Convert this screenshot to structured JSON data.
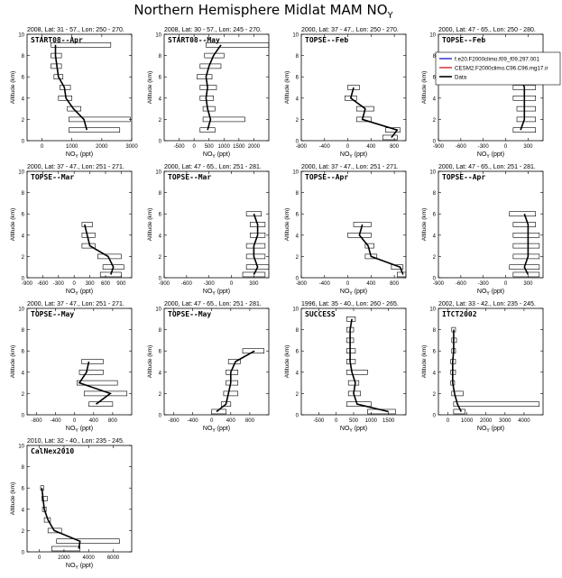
{
  "figure": {
    "title_main": "Northern Hemisphere Midlat MAM NO",
    "title_sub": "Y",
    "y_label": "Altitude (km)",
    "x_label_main": "NO",
    "x_label_sub": "Y",
    "x_label_unit": " (ppt)"
  },
  "legend": {
    "entries": [
      {
        "label": "f.e20.F2000climo.f09_f09.297.001",
        "color": "#0000cc"
      },
      {
        "label": "CESM2.F2000climo.C96.C96.mg17.ir",
        "color": "#cc0000"
      },
      {
        "label": "Data",
        "color": "#000000"
      }
    ]
  },
  "chart_data": [
    {
      "type": "line",
      "header": "2008, Lat:  31 - 57., Lon: 250 - 270.",
      "campaign": "START08--Apr",
      "xlim": [
        -500,
        3000
      ],
      "xticks": [
        0,
        1000,
        2000,
        3000
      ],
      "ylim": [
        0,
        10
      ],
      "yticks": [
        0,
        2,
        4,
        6,
        8,
        10
      ],
      "altitude": [
        1,
        2,
        3,
        4,
        5,
        6,
        7,
        8,
        9
      ],
      "mean": [
        1500,
        1400,
        1050,
        800,
        750,
        550,
        500,
        450,
        450
      ],
      "box_lo": [
        900,
        900,
        850,
        550,
        600,
        400,
        300,
        300,
        300
      ],
      "box_hi": [
        2600,
        2950,
        1300,
        1000,
        950,
        700,
        650,
        650,
        2300
      ]
    },
    {
      "type": "line",
      "header": "2008, Lat:  30 - 57., Lon: 245 - 270.",
      "campaign": "START08--May",
      "xlim": [
        -1000,
        2500
      ],
      "xticks": [
        -500,
        0,
        500,
        1000,
        1500,
        2000
      ],
      "ylim": [
        0,
        10
      ],
      "yticks": [
        0,
        2,
        4,
        6,
        8,
        10
      ],
      "altitude": [
        1,
        2,
        3,
        4,
        5,
        6,
        7,
        8,
        9
      ],
      "mean": [
        450,
        550,
        450,
        400,
        450,
        400,
        500,
        650,
        900
      ],
      "box_lo": [
        200,
        300,
        300,
        200,
        200,
        100,
        200,
        350,
        400
      ],
      "box_hi": [
        700,
        1700,
        700,
        650,
        750,
        600,
        900,
        1000,
        2500
      ]
    },
    {
      "type": "line",
      "header": "2000, Lat:  37 - 47., Lon: 250 - 270.",
      "campaign": "TOPSE--Feb",
      "xlim": [
        -800,
        1000
      ],
      "xticks": [
        -800,
        -400,
        0,
        400,
        800
      ],
      "ylim": [
        0,
        10
      ],
      "yticks": [
        0,
        2,
        4,
        6,
        8,
        10
      ],
      "altitude": [
        0.3,
        1,
        2,
        3,
        4,
        5
      ],
      "mean": [
        750,
        850,
        250,
        300,
        50,
        100
      ],
      "box_lo": [
        600,
        650,
        150,
        150,
        -50,
        0
      ],
      "box_hi": [
        850,
        900,
        400,
        450,
        150,
        200
      ]
    },
    {
      "type": "line",
      "header": "2000, Lat:  47 - 65., Lon: 250 - 280.",
      "campaign": "TOPSE--Feb",
      "xlim": [
        -900,
        500
      ],
      "xticks": [
        -900,
        -600,
        -300,
        0,
        300
      ],
      "ylim": [
        0,
        10
      ],
      "yticks": [
        0,
        2,
        4,
        6,
        8,
        10
      ],
      "altitude": [
        1,
        2,
        3,
        4,
        5,
        6
      ],
      "mean": [
        200,
        250,
        250,
        250,
        250,
        200
      ],
      "box_lo": [
        100,
        150,
        150,
        100,
        100,
        100
      ],
      "box_hi": [
        400,
        400,
        400,
        400,
        400,
        350
      ]
    },
    {
      "type": "line",
      "header": "2000, Lat:  37 - 47., Lon: 251 - 271.",
      "campaign": "TOPSE--Mar",
      "xlim": [
        -900,
        1100
      ],
      "xticks": [
        -900,
        -600,
        -300,
        0,
        300,
        600,
        900
      ],
      "ylim": [
        0,
        10
      ],
      "yticks": [
        0,
        2,
        4,
        6,
        8,
        10
      ],
      "altitude": [
        0.3,
        1,
        2,
        3,
        4,
        5
      ],
      "mean": [
        700,
        750,
        650,
        300,
        250,
        200
      ],
      "box_lo": [
        500,
        550,
        450,
        150,
        150,
        150
      ],
      "box_hi": [
        900,
        950,
        900,
        400,
        400,
        350
      ]
    },
    {
      "type": "line",
      "header": "2000, Lat:  47 - 65., Lon: 251 - 281.",
      "campaign": "TOPSE--Mar",
      "xlim": [
        -900,
        500
      ],
      "xticks": [
        -900,
        -600,
        -300,
        0,
        300
      ],
      "ylim": [
        0,
        10
      ],
      "yticks": [
        0,
        2,
        4,
        6,
        8,
        10
      ],
      "altitude": [
        0.3,
        1,
        2,
        3,
        4,
        5,
        6
      ],
      "mean": [
        300,
        350,
        300,
        300,
        350,
        350,
        300
      ],
      "box_lo": [
        150,
        200,
        200,
        200,
        250,
        250,
        200
      ],
      "box_hi": [
        450,
        500,
        450,
        450,
        450,
        450,
        400
      ]
    },
    {
      "type": "line",
      "header": "2000, Lat:  37 - 47., Lon: 251 - 271.",
      "campaign": "TOPSE--Apr",
      "xlim": [
        -800,
        1000
      ],
      "xticks": [
        -800,
        -400,
        0,
        400,
        800
      ],
      "ylim": [
        0,
        10
      ],
      "yticks": [
        0,
        2,
        4,
        6,
        8,
        10
      ],
      "altitude": [
        0.3,
        1,
        2,
        3,
        4,
        5
      ],
      "mean": [
        950,
        900,
        400,
        350,
        200,
        250
      ],
      "box_lo": [
        850,
        750,
        300,
        300,
        0,
        100
      ],
      "box_hi": [
        1000,
        950,
        500,
        450,
        400,
        400
      ]
    },
    {
      "type": "line",
      "header": "2000, Lat:  47 - 65., Lon: 251 - 281.",
      "campaign": "TOPSE--Apr",
      "xlim": [
        -900,
        500
      ],
      "xticks": [
        -900,
        -600,
        -300,
        0,
        300
      ],
      "ylim": [
        0,
        10
      ],
      "yticks": [
        0,
        2,
        4,
        6,
        8,
        10
      ],
      "altitude": [
        0.3,
        1,
        2,
        3,
        4,
        5,
        6
      ],
      "mean": [
        300,
        250,
        300,
        300,
        300,
        300,
        250
      ],
      "box_lo": [
        100,
        50,
        100,
        100,
        100,
        100,
        50
      ],
      "box_hi": [
        450,
        450,
        450,
        450,
        450,
        400,
        400
      ]
    },
    {
      "type": "line",
      "header": "2000, Lat:  37 - 47., Lon: 251 - 271.",
      "campaign": "TOPSE--May",
      "xlim": [
        -1000,
        1200
      ],
      "xticks": [
        -800,
        -400,
        0,
        400,
        800
      ],
      "ylim": [
        0,
        10
      ],
      "yticks": [
        0,
        2,
        4,
        6,
        8,
        10
      ],
      "altitude": [
        1,
        2,
        3,
        4,
        5
      ],
      "mean": [
        450,
        750,
        100,
        250,
        300
      ],
      "box_lo": [
        300,
        200,
        50,
        100,
        150
      ],
      "box_hi": [
        800,
        1100,
        900,
        600,
        600
      ]
    },
    {
      "type": "line",
      "header": "2000, Lat:  47 - 65., Lon: 251 - 281.",
      "campaign": "TOPSE--May",
      "xlim": [
        -1000,
        1200
      ],
      "xticks": [
        -800,
        -400,
        0,
        400,
        800
      ],
      "ylim": [
        0,
        10
      ],
      "yticks": [
        0,
        2,
        4,
        6,
        8,
        10
      ],
      "altitude": [
        0.3,
        1,
        2,
        3,
        4,
        5,
        6
      ],
      "mean": [
        100,
        300,
        350,
        400,
        400,
        500,
        900
      ],
      "box_lo": [
        0,
        200,
        250,
        300,
        300,
        350,
        650
      ],
      "box_hi": [
        300,
        400,
        550,
        550,
        550,
        600,
        1100
      ]
    },
    {
      "type": "line",
      "header": "1996, Lat:  35 - 40., Lon: 260 - 265.",
      "campaign": "SUCCESS",
      "xlim": [
        -1000,
        2000
      ],
      "xticks": [
        -500,
        0,
        500,
        1000,
        1500
      ],
      "ylim": [
        0,
        10
      ],
      "yticks": [
        0,
        2,
        4,
        6,
        8,
        10
      ],
      "altitude": [
        0.3,
        1,
        2,
        3,
        4,
        5,
        6,
        7,
        8,
        9
      ],
      "mean": [
        1500,
        600,
        500,
        550,
        450,
        400,
        400,
        400,
        400,
        450
      ],
      "box_lo": [
        900,
        300,
        350,
        350,
        300,
        300,
        300,
        300,
        300,
        300
      ],
      "box_hi": [
        1700,
        1000,
        700,
        650,
        900,
        550,
        550,
        500,
        500,
        550
      ]
    },
    {
      "type": "line",
      "header": "2002, Lat:  33 - 42., Lon: 235 - 245.",
      "campaign": "ITCT2002",
      "xlim": [
        -500,
        5000
      ],
      "xticks": [
        0,
        1000,
        2000,
        3000,
        4000
      ],
      "ylim": [
        0,
        10
      ],
      "yticks": [
        0,
        2,
        4,
        6,
        8,
        10
      ],
      "altitude": [
        0.3,
        1,
        2,
        3,
        4,
        5,
        6,
        7,
        8
      ],
      "mean": [
        700,
        500,
        350,
        250,
        250,
        250,
        300,
        300,
        300
      ],
      "box_lo": [
        300,
        300,
        200,
        150,
        150,
        150,
        200,
        200,
        200
      ],
      "box_hi": [
        900,
        4800,
        800,
        350,
        400,
        400,
        400,
        450,
        400
      ]
    },
    {
      "type": "line",
      "header": "2010, Lat:  32 - 40., Lon: 235 - 245.",
      "campaign": "CalNex2010",
      "xlim": [
        -1000,
        7500
      ],
      "xticks": [
        0,
        2000,
        4000,
        6000
      ],
      "ylim": [
        0,
        10
      ],
      "yticks": [
        0,
        2,
        4,
        6,
        8,
        10
      ],
      "altitude": [
        0.3,
        1,
        2,
        3,
        4,
        5,
        6
      ],
      "mean": [
        3200,
        3300,
        1200,
        700,
        400,
        300,
        200
      ],
      "box_lo": [
        1000,
        1400,
        700,
        400,
        250,
        200,
        100
      ],
      "box_hi": [
        3300,
        6500,
        1800,
        900,
        550,
        650,
        350
      ]
    }
  ]
}
